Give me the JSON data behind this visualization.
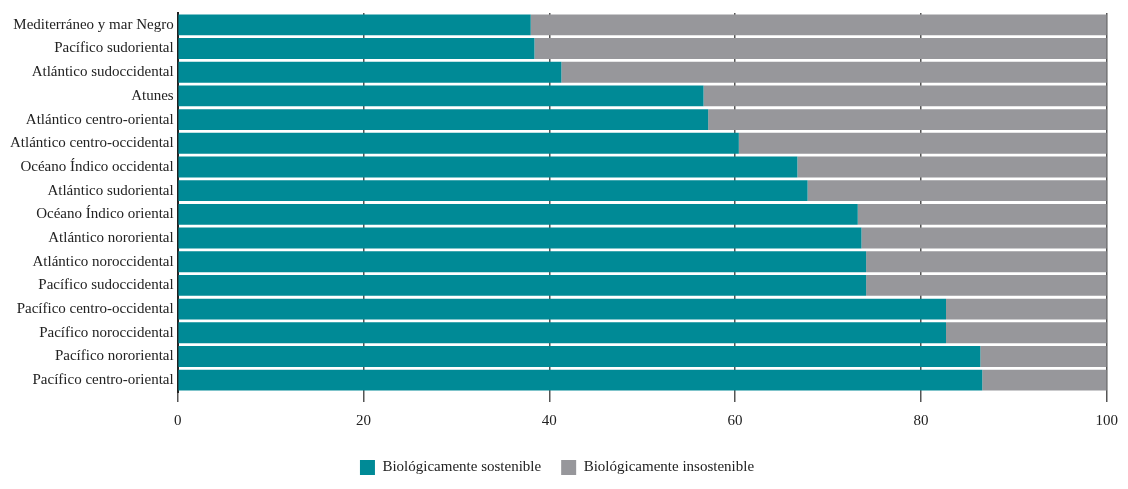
{
  "chart_data": {
    "type": "bar",
    "orientation": "horizontal",
    "stacked": true,
    "categories": [
      "Mediterráneo y mar Negro",
      "Pacífico sudoriental",
      "Atlántico sudoccidental",
      "Atunes",
      "Atlántico centro-oriental",
      "Atlántico centro-occidental",
      "Océano Índico occidental",
      "Atlántico sudoriental",
      "Océano Índico oriental",
      "Atlántico nororiental",
      "Atlántico noroccidental",
      "Pacífico sudoccidental",
      "Pacífico centro-occidental",
      "Pacífico noroccidental",
      "Pacífico nororiental",
      "Pacífico centro-oriental"
    ],
    "series": [
      {
        "name": "Biológicamente sostenible",
        "color": "#008a96",
        "values": [
          38.0,
          38.4,
          41.3,
          56.6,
          57.1,
          60.4,
          66.7,
          67.8,
          73.2,
          73.6,
          74.1,
          74.1,
          82.7,
          82.7,
          86.4,
          86.6
        ]
      },
      {
        "name": "Biológicamente insostenible",
        "color": "#97979b",
        "values": [
          62.0,
          61.6,
          58.7,
          43.4,
          42.9,
          39.6,
          33.3,
          32.2,
          26.8,
          26.4,
          25.9,
          25.9,
          17.3,
          17.3,
          13.6,
          13.4
        ]
      }
    ],
    "xlim": [
      0,
      100
    ],
    "xticks": [
      0,
      20,
      40,
      60,
      80,
      100
    ],
    "grid": "x",
    "legend": "bottom"
  }
}
